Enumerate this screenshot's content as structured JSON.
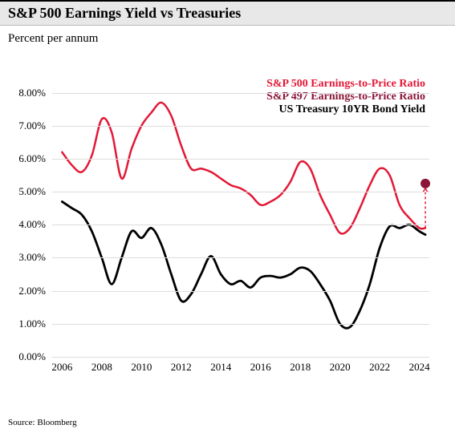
{
  "title": "S&P 500 Earnings Yield vs Treasuries",
  "subtitle": "Percent per annum",
  "source": "Source: Bloomberg",
  "chart": {
    "type": "line",
    "background_color": "#ffffff",
    "grid_color": "#dddddd",
    "title_bar_bg": "#e8e8e8",
    "ylim": [
      0,
      8.5
    ],
    "xlim": [
      2005.5,
      2024.5
    ],
    "yticks": [
      0,
      1,
      2,
      3,
      4,
      5,
      6,
      7,
      8
    ],
    "ytick_labels": [
      "0.00%",
      "1.00%",
      "2.00%",
      "3.00%",
      "4.00%",
      "5.00%",
      "6.00%",
      "7.00%",
      "8.00%"
    ],
    "xticks": [
      2006,
      2008,
      2010,
      2012,
      2014,
      2016,
      2018,
      2020,
      2022,
      2024
    ],
    "xtick_labels": [
      "2006",
      "2008",
      "2010",
      "2012",
      "2014",
      "2016",
      "2018",
      "2020",
      "2022",
      "2024"
    ],
    "label_fontsize": 13,
    "series": {
      "sp500": {
        "label": "S&P 500 Earnings-to-Price Ratio",
        "color": "#e31837",
        "line_width": 2.5,
        "x": [
          2006,
          2006.5,
          2007,
          2007.5,
          2008,
          2008.5,
          2009,
          2009.5,
          2010,
          2010.5,
          2011,
          2011.5,
          2012,
          2012.5,
          2013,
          2013.5,
          2014,
          2014.5,
          2015,
          2015.5,
          2016,
          2016.5,
          2017,
          2017.5,
          2018,
          2018.5,
          2019,
          2019.5,
          2020,
          2020.5,
          2021,
          2021.5,
          2022,
          2022.5,
          2023,
          2023.5,
          2024,
          2024.3
        ],
        "y": [
          6.2,
          5.8,
          5.6,
          6.1,
          7.2,
          6.8,
          5.4,
          6.3,
          7.0,
          7.4,
          7.7,
          7.3,
          6.4,
          5.7,
          5.7,
          5.6,
          5.4,
          5.2,
          5.1,
          4.9,
          4.6,
          4.7,
          4.9,
          5.3,
          5.9,
          5.7,
          4.9,
          4.3,
          3.75,
          3.9,
          4.5,
          5.2,
          5.7,
          5.5,
          4.6,
          4.2,
          3.9,
          3.9
        ]
      },
      "ust": {
        "label": "US Treasury 10YR Bond Yield",
        "color": "#000000",
        "line_width": 2.8,
        "x": [
          2006,
          2006.5,
          2007,
          2007.5,
          2008,
          2008.5,
          2009,
          2009.5,
          2010,
          2010.5,
          2011,
          2011.5,
          2012,
          2012.5,
          2013,
          2013.5,
          2014,
          2014.5,
          2015,
          2015.5,
          2016,
          2016.5,
          2017,
          2017.5,
          2018,
          2018.5,
          2019,
          2019.5,
          2020,
          2020.5,
          2021,
          2021.5,
          2022,
          2022.5,
          2023,
          2023.5,
          2024,
          2024.3
        ],
        "y": [
          4.7,
          4.5,
          4.3,
          3.8,
          3.0,
          2.2,
          3.0,
          3.8,
          3.6,
          3.9,
          3.4,
          2.5,
          1.7,
          1.9,
          2.5,
          3.05,
          2.5,
          2.2,
          2.3,
          2.1,
          2.4,
          2.45,
          2.4,
          2.5,
          2.7,
          2.6,
          2.2,
          1.7,
          1.0,
          0.9,
          1.4,
          2.2,
          3.3,
          3.95,
          3.9,
          4.0,
          3.8,
          3.7
        ]
      },
      "sp497_point": {
        "label": "S&P 497 Earnings-to-Price Ratio",
        "color": "#8b1538",
        "marker": "circle",
        "marker_size": 6,
        "x": 2024.3,
        "y": 5.25,
        "arrow_from_y": 3.9,
        "arrow_color": "#e31837",
        "arrow_dash": "3,3"
      }
    }
  }
}
